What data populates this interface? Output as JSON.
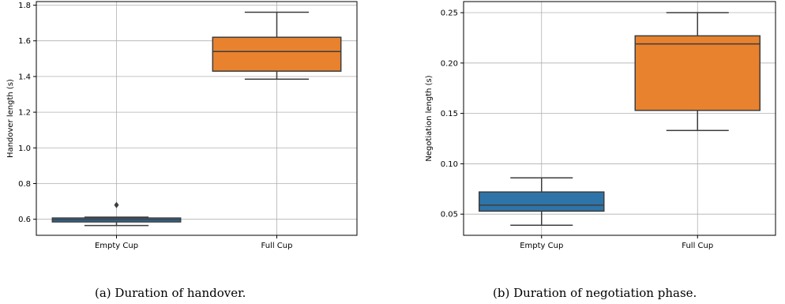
{
  "chart_data": [
    {
      "type": "box",
      "caption": "(a) Duration of handover.",
      "ylabel": "Handover length (s)",
      "xlabel": "",
      "categories": [
        "Empty Cup",
        "Full Cup"
      ],
      "ylim": [
        0.51,
        1.82
      ],
      "yticks": [
        0.6,
        0.8,
        1.0,
        1.2,
        1.4,
        1.6,
        1.8
      ],
      "ytick_labels": [
        "0.6",
        "0.8",
        "1.0",
        "1.2",
        "1.4",
        "1.6",
        "1.8"
      ],
      "grid": true,
      "boxes": [
        {
          "category": "Empty Cup",
          "color": "#2e74a8",
          "whisker_low": 0.565,
          "q1": 0.585,
          "median": 0.597,
          "q3": 0.607,
          "whisker_high": 0.612,
          "outliers": [
            0.68
          ]
        },
        {
          "category": "Full Cup",
          "color": "#e8822e",
          "whisker_low": 1.385,
          "q1": 1.43,
          "median": 1.54,
          "q3": 1.62,
          "whisker_high": 1.76,
          "outliers": []
        }
      ]
    },
    {
      "type": "box",
      "caption": "(b) Duration of negotiation phase.",
      "ylabel": "Negotiation length (s)",
      "xlabel": "",
      "categories": [
        "Empty Cup",
        "Full Cup"
      ],
      "ylim": [
        0.029,
        0.261
      ],
      "yticks": [
        0.05,
        0.1,
        0.15,
        0.2,
        0.25
      ],
      "ytick_labels": [
        "0.05",
        "0.10",
        "0.15",
        "0.20",
        "0.25"
      ],
      "grid": true,
      "boxes": [
        {
          "category": "Empty Cup",
          "color": "#2e74a8",
          "whisker_low": 0.039,
          "q1": 0.053,
          "median": 0.059,
          "q3": 0.072,
          "whisker_high": 0.086,
          "outliers": []
        },
        {
          "category": "Full Cup",
          "color": "#e8822e",
          "whisker_low": 0.133,
          "q1": 0.153,
          "median": 0.219,
          "q3": 0.227,
          "whisker_high": 0.25,
          "outliers": []
        }
      ]
    }
  ]
}
